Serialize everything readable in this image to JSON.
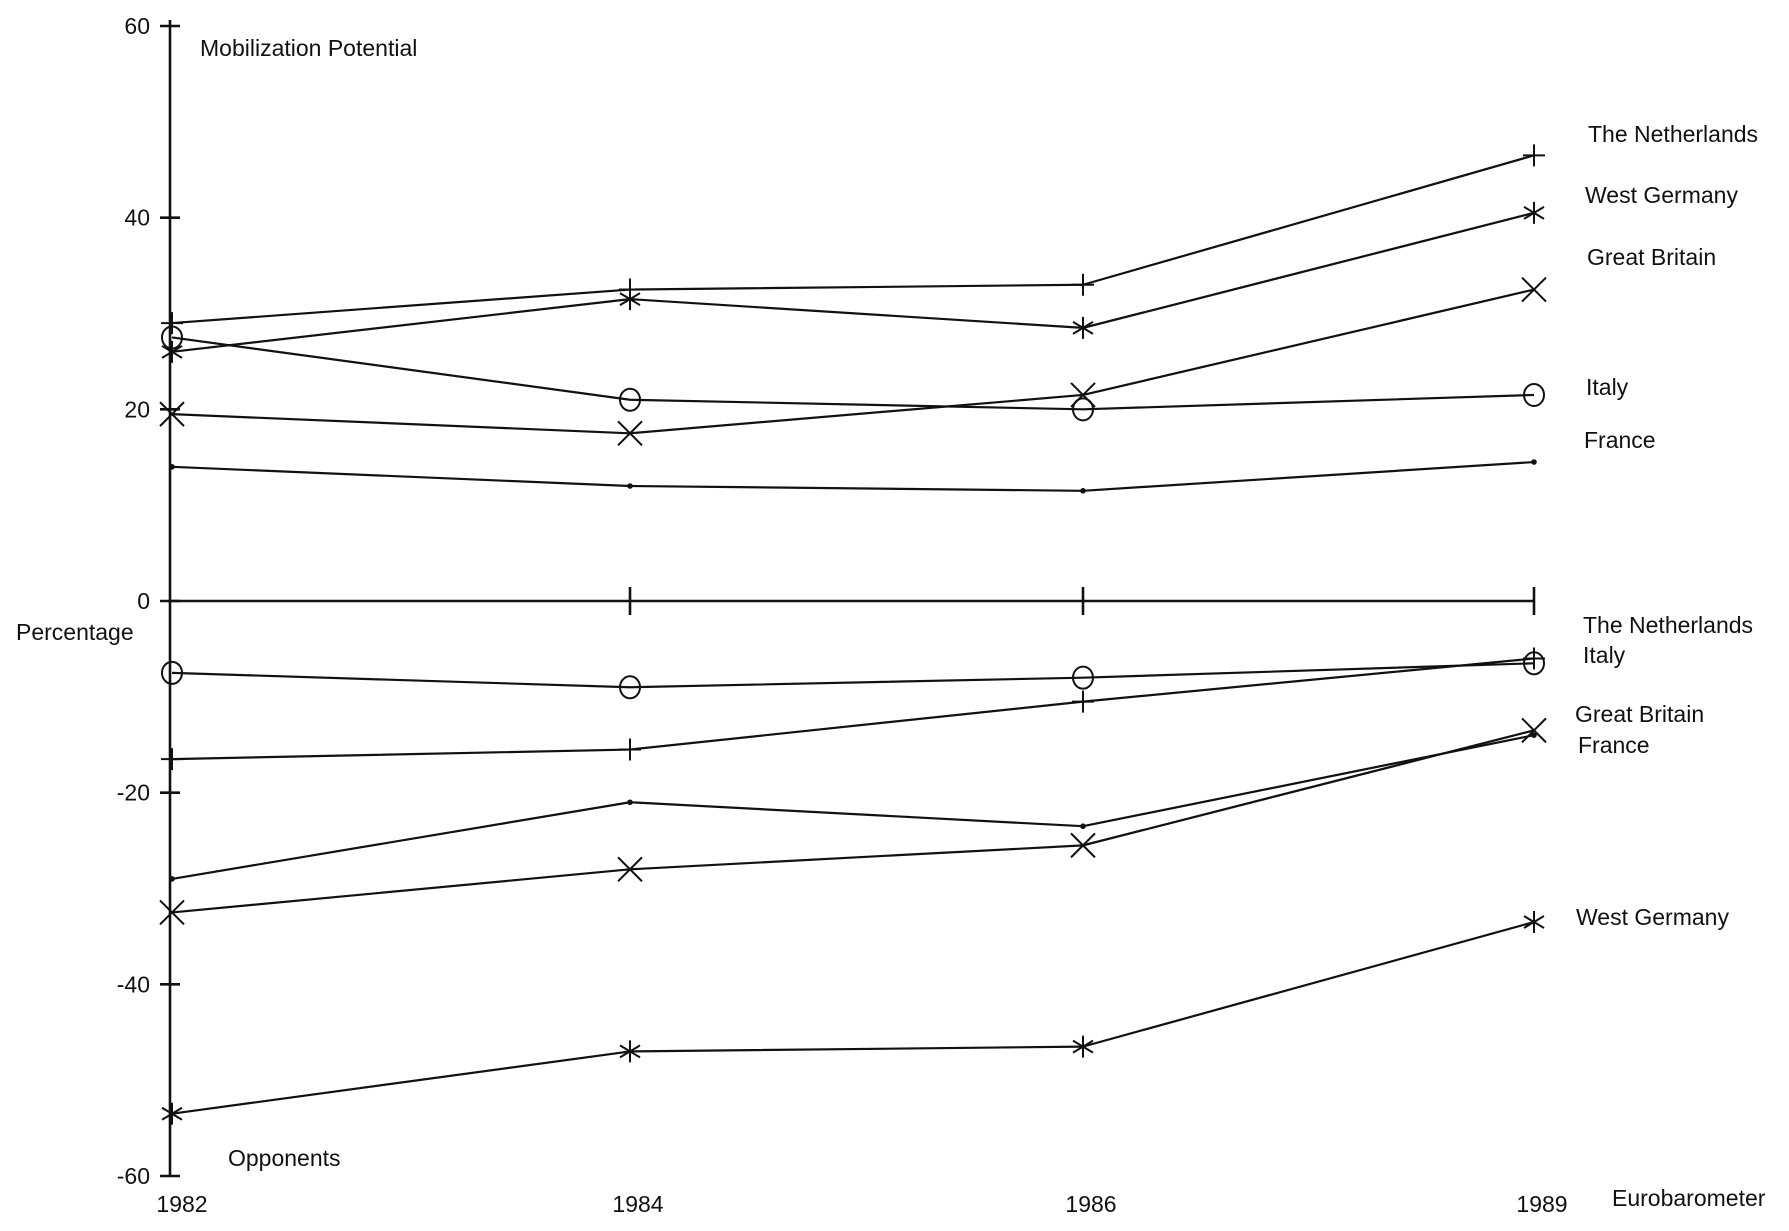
{
  "chart_data": {
    "type": "line",
    "ylabel": "Percentage",
    "xlabel": "Eurobarometer",
    "ylim": [
      -60,
      60
    ],
    "yticks": [
      "60",
      "40",
      "20",
      "0",
      "-20",
      "-40",
      "-60"
    ],
    "x": [
      "1982",
      "1984",
      "1986",
      "1989"
    ],
    "annotations": {
      "top": "Mobilization Potential",
      "bottom": "Opponents"
    },
    "series": [
      {
        "name": "The Netherlands",
        "group": "Mobilization Potential",
        "marker": "plus",
        "values": [
          29,
          32.5,
          33,
          46.5
        ]
      },
      {
        "name": "West Germany",
        "group": "Mobilization Potential",
        "marker": "star",
        "values": [
          26,
          31.5,
          28.5,
          40.5
        ]
      },
      {
        "name": "Great Britain",
        "group": "Mobilization Potential",
        "marker": "x",
        "values": [
          19.5,
          17.5,
          21.5,
          32.5
        ]
      },
      {
        "name": "Italy",
        "group": "Mobilization Potential",
        "marker": "circle",
        "values": [
          27.5,
          21,
          20,
          21.5
        ]
      },
      {
        "name": "France",
        "group": "Mobilization Potential",
        "marker": "dot",
        "values": [
          14,
          12,
          11.5,
          14.5
        ]
      },
      {
        "name": "The Netherlands",
        "group": "Opponents",
        "marker": "plus",
        "values": [
          -16.5,
          -15.5,
          -10.5,
          -6
        ]
      },
      {
        "name": "Italy",
        "group": "Opponents",
        "marker": "circle",
        "values": [
          -7.5,
          -9,
          -8,
          -6.5
        ]
      },
      {
        "name": "Great Britain",
        "group": "Opponents",
        "marker": "x",
        "values": [
          -32.5,
          -28,
          -25.5,
          -13.5
        ]
      },
      {
        "name": "France",
        "group": "Opponents",
        "marker": "dot",
        "values": [
          -29,
          -21,
          -23.5,
          -14
        ]
      },
      {
        "name": "West Germany",
        "group": "Opponents",
        "marker": "star",
        "values": [
          -53.5,
          -47,
          -46.5,
          -33.5
        ]
      }
    ]
  }
}
